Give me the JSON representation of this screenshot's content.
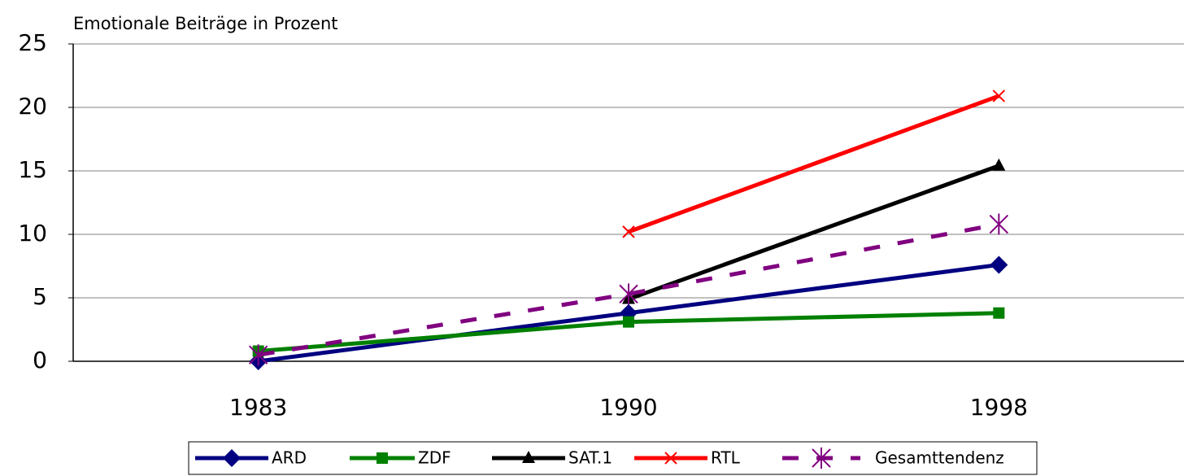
{
  "chart_data": {
    "type": "line",
    "ylabel": "Emotionale Beiträge in Prozent",
    "categories": [
      "1983",
      "1990",
      "1998"
    ],
    "series": [
      {
        "name": "ARD",
        "color": "#000080",
        "marker": "diamond",
        "values": [
          0,
          3.8,
          7.6
        ]
      },
      {
        "name": "ZDF",
        "color": "#008000",
        "marker": "square",
        "values": [
          0.8,
          3.1,
          3.8
        ]
      },
      {
        "name": "SAT.1",
        "color": "#000000",
        "marker": "triangle",
        "values": [
          null,
          4.9,
          15.4
        ]
      },
      {
        "name": "RTL",
        "color": "#ff0000",
        "marker": "x",
        "values": [
          null,
          10.2,
          20.9
        ]
      },
      {
        "name": "Gesamttendenz",
        "color": "#800080",
        "marker": "star",
        "dashed": true,
        "values": [
          0.5,
          5.3,
          10.8
        ]
      }
    ],
    "ylim": [
      0,
      25
    ],
    "yticks": [
      0,
      5,
      10,
      15,
      20,
      25
    ],
    "grid": true,
    "legend": "bottom"
  }
}
